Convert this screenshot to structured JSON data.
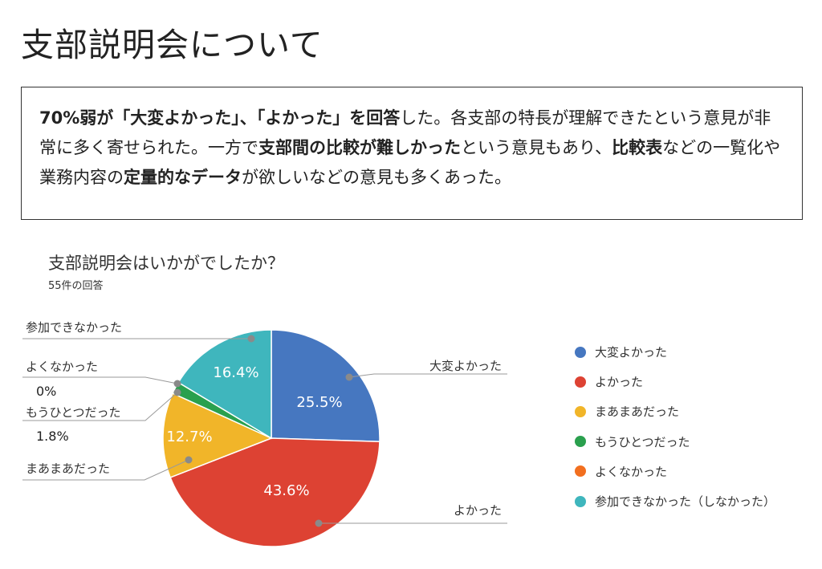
{
  "page_title": "支部説明会について",
  "summary": {
    "segments": [
      {
        "text": "70%弱が「大変よかった」、「よかった」を回答",
        "bold": true
      },
      {
        "text": "した。各支部の特長が理解できたという意見が非常に多く寄せられた。一方で",
        "bold": false
      },
      {
        "text": "支部間の比較が難しかった",
        "bold": true
      },
      {
        "text": "という意見もあり、",
        "bold": false
      },
      {
        "text": "比較表",
        "bold": true
      },
      {
        "text": "などの一覧化や業務内容の",
        "bold": false
      },
      {
        "text": "定量的なデータ",
        "bold": true
      },
      {
        "text": "が欲しいなどの意見も多くあった。",
        "bold": false
      }
    ]
  },
  "chart_title": "支部説明会はいかがでしたか？",
  "chart_subtitle": "55件の回答",
  "colors": {
    "blue": "#4677c0",
    "red": "#dd4233",
    "yellow": "#f1b529",
    "green": "#2aa04e",
    "orange": "#f26f1f",
    "teal": "#3fb6bd"
  },
  "chart_data": {
    "type": "pie",
    "title": "支部説明会はいかがでしたか？",
    "subtitle": "55件の回答",
    "total_responses": 55,
    "slices": [
      {
        "label": "大変よかった",
        "value": 25.5,
        "color": "#4677c0",
        "pct_label": "25.5%"
      },
      {
        "label": "よかった",
        "value": 43.6,
        "color": "#dd4233",
        "pct_label": "43.6%"
      },
      {
        "label": "まあまあだった",
        "value": 12.7,
        "color": "#f1b529",
        "pct_label": "12.7%"
      },
      {
        "label": "もうひとつだった",
        "value": 1.8,
        "color": "#2aa04e",
        "pct_label": "1.8%"
      },
      {
        "label": "よくなかった",
        "value": 0,
        "color": "#f26f1f",
        "pct_label": "0%"
      },
      {
        "label": "参加できなかった",
        "value": 16.4,
        "color": "#3fb6bd",
        "pct_label": "16.4%"
      }
    ],
    "legend": [
      {
        "label": "大変よかった",
        "color": "#4677c0"
      },
      {
        "label": "よかった",
        "color": "#dd4233"
      },
      {
        "label": "まあまあだった",
        "color": "#f1b529"
      },
      {
        "label": "もうひとつだった",
        "color": "#2aa04e"
      },
      {
        "label": "よくなかった",
        "color": "#f26f1f"
      },
      {
        "label": "参加できなかった（しなかった）",
        "color": "#3fb6bd"
      }
    ],
    "legend_position": "right"
  }
}
